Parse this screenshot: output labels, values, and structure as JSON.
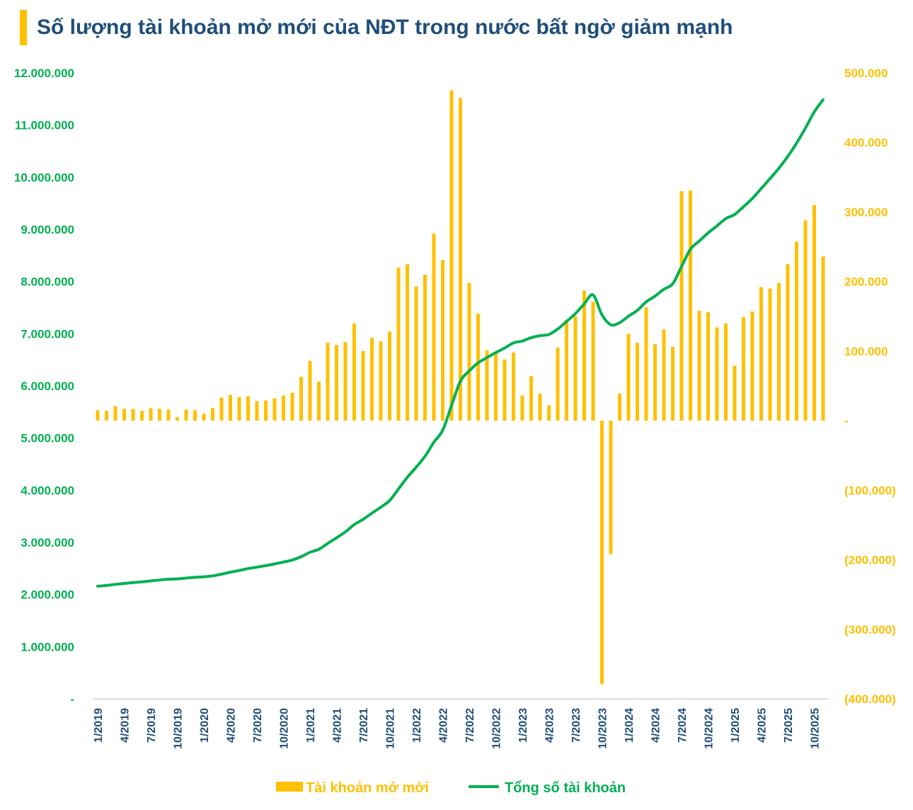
{
  "chart_data": {
    "type": "bar+line",
    "title": "Số lượng tài khoản mở mới của NĐT trong nước bất ngờ giảm mạnh",
    "colors": {
      "bars": "#ffc000",
      "line": "#00b050",
      "title": "#1f4e79",
      "xticks": "#1f4e79"
    },
    "legend_position": "bottom",
    "grid": false,
    "x": [
      "1/2019",
      "2/2019",
      "3/2019",
      "4/2019",
      "5/2019",
      "6/2019",
      "7/2019",
      "8/2019",
      "9/2019",
      "10/2019",
      "11/2019",
      "12/2019",
      "1/2020",
      "2/2020",
      "3/2020",
      "4/2020",
      "5/2020",
      "6/2020",
      "7/2020",
      "8/2020",
      "9/2020",
      "10/2020",
      "11/2020",
      "12/2020",
      "1/2021",
      "2/2021",
      "3/2021",
      "4/2021",
      "5/2021",
      "6/2021",
      "7/2021",
      "8/2021",
      "9/2021",
      "10/2021",
      "11/2021",
      "12/2021",
      "1/2022",
      "2/2022",
      "3/2022",
      "4/2022",
      "5/2022",
      "6/2022",
      "7/2022",
      "8/2022",
      "9/2022",
      "10/2022",
      "11/2022",
      "12/2022",
      "1/2023",
      "2/2023",
      "3/2023",
      "4/2023",
      "5/2023",
      "6/2023",
      "7/2023",
      "8/2023",
      "9/2023",
      "10/2023",
      "11/2023",
      "12/2023",
      "1/2024",
      "2/2024",
      "3/2024",
      "4/2024",
      "5/2024",
      "6/2024",
      "7/2024",
      "8/2024",
      "9/2024",
      "10/2024",
      "11/2024",
      "12/2024",
      "1/2025",
      "2/2025",
      "3/2025",
      "4/2025",
      "5/2025",
      "6/2025",
      "7/2025",
      "8/2025",
      "9/2025",
      "10/2025",
      "11/2025"
    ],
    "x_tick_labels": [
      "1/2019",
      "4/2019",
      "7/2019",
      "10/2019",
      "1/2020",
      "4/2020",
      "7/2020",
      "10/2020",
      "1/2021",
      "4/2021",
      "7/2021",
      "10/2021",
      "1/2022",
      "4/2022",
      "7/2022",
      "10/2022",
      "1/2023",
      "4/2023",
      "7/2023",
      "10/2023",
      "1/2024",
      "4/2024",
      "7/2024",
      "10/2024",
      "1/2025",
      "4/2025",
      "7/2025",
      "10/2025"
    ],
    "y_left": {
      "lim": [
        0,
        12000000
      ],
      "tick_labels": [
        "-",
        "1.000.000",
        "2.000.000",
        "3.000.000",
        "4.000.000",
        "5.000.000",
        "6.000.000",
        "7.000.000",
        "8.000.000",
        "9.000.000",
        "10.000.000",
        "11.000.000",
        "12.000.000"
      ]
    },
    "y_right": {
      "lim": [
        -400000,
        500000
      ],
      "tick_labels": [
        "(400.000)",
        "(300.000)",
        "(200.000)",
        "(100.000)",
        "-",
        "100.000",
        "200.000",
        "300.000",
        "400.000",
        "500.000"
      ]
    },
    "series": [
      {
        "name": "Tài khoản mở mới",
        "type": "bar",
        "axis": "right",
        "values": [
          15000,
          14000,
          21000,
          17000,
          17000,
          14000,
          18000,
          17000,
          16000,
          5000,
          16000,
          15000,
          10000,
          18000,
          33000,
          37000,
          34000,
          35000,
          28000,
          29000,
          32000,
          36000,
          40000,
          63000,
          86000,
          56000,
          112000,
          109000,
          113000,
          140000,
          100000,
          119000,
          114000,
          128000,
          220000,
          225000,
          193000,
          210000,
          269000,
          231000,
          475000,
          464000,
          198000,
          154000,
          101000,
          96000,
          88000,
          98000,
          36000,
          64000,
          39000,
          22000,
          105000,
          145000,
          150000,
          187000,
          171000,
          -379000,
          -192000,
          39000,
          125000,
          112000,
          163000,
          110000,
          131000,
          106000,
          330000,
          331000,
          158000,
          156000,
          134000,
          140000,
          79000,
          149000,
          157000,
          192000,
          190000,
          198000,
          225000,
          257000,
          288000,
          310000,
          236000
        ]
      },
      {
        "name": "Tổng số tài khoản",
        "type": "line",
        "axis": "left",
        "values": [
          2160000,
          2174000,
          2195000,
          2212000,
          2229000,
          2243000,
          2261000,
          2278000,
          2294000,
          2299000,
          2315000,
          2330000,
          2340000,
          2358000,
          2391000,
          2428000,
          2462000,
          2497000,
          2525000,
          2554000,
          2586000,
          2622000,
          2662000,
          2725000,
          2811000,
          2867000,
          2979000,
          3088000,
          3201000,
          3341000,
          3441000,
          3560000,
          3674000,
          3802000,
          4022000,
          4247000,
          4440000,
          4650000,
          4919000,
          5150000,
          5625000,
          6089000,
          6287000,
          6441000,
          6542000,
          6638000,
          6726000,
          6824000,
          6860000,
          6924000,
          6963000,
          6985000,
          7090000,
          7235000,
          7385000,
          7572000,
          7743000,
          7364000,
          7172000,
          7211000,
          7336000,
          7448000,
          7611000,
          7721000,
          7852000,
          7958000,
          8288000,
          8619000,
          8777000,
          8933000,
          9067000,
          9207000,
          9286000,
          9435000,
          9592000,
          9784000,
          9974000,
          10172000,
          10397000,
          10654000,
          10942000,
          11252000,
          11488000
        ]
      }
    ]
  }
}
